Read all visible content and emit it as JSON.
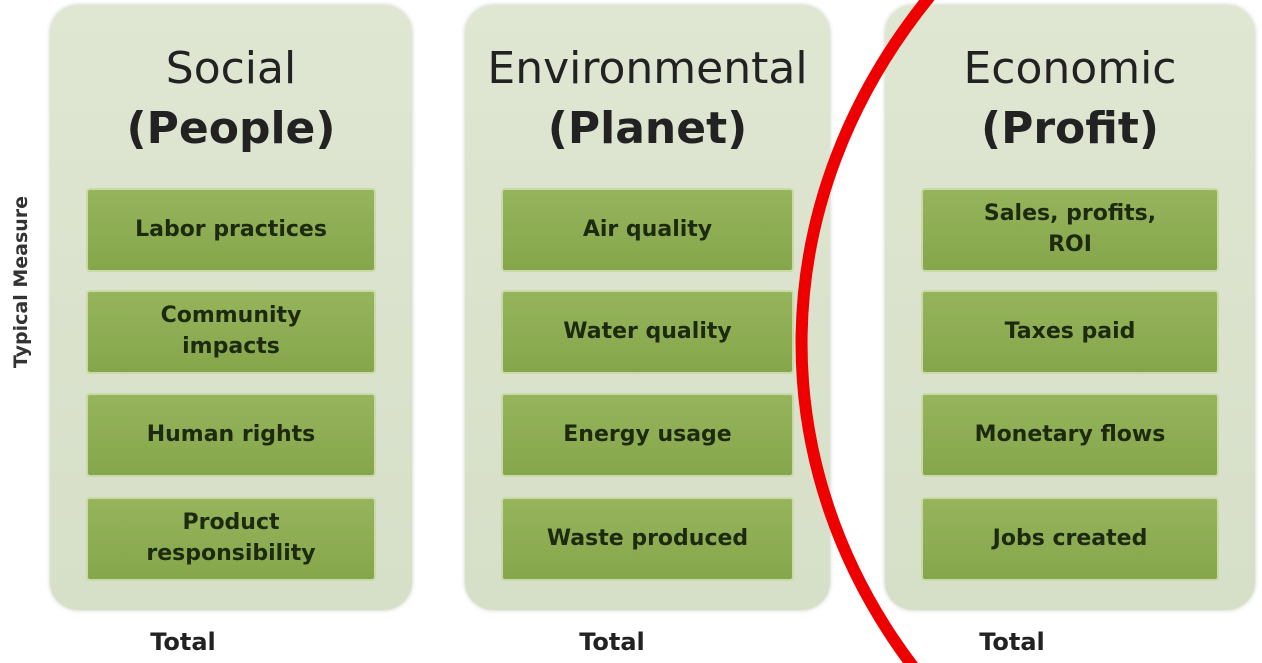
{
  "side_label": "Typical Measure",
  "columns": [
    {
      "title": "Social",
      "subtitle": "(People)",
      "items": [
        "Labor practices",
        "Community impacts",
        "Human rights",
        "Product responsibility"
      ],
      "footer": "Total"
    },
    {
      "title": "Environmental",
      "subtitle": "(Planet)",
      "items": [
        "Air quality",
        "Water quality",
        "Energy usage",
        "Waste produced"
      ],
      "footer": "Total"
    },
    {
      "title": "Economic",
      "subtitle": "(Profit)",
      "items": [
        "Sales, profits, ROI",
        "Taxes paid",
        "Monetary flows",
        "Jobs created"
      ],
      "footer": "Total"
    }
  ]
}
